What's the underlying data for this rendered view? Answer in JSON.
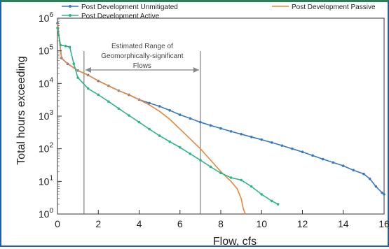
{
  "chart_data": {
    "type": "line",
    "title": "",
    "xlabel": "Flow, cfs",
    "ylabel": "Total hours exceeding",
    "xlim": [
      0,
      16
    ],
    "ylim": [
      1,
      1000000
    ],
    "yscale": "log",
    "x_ticks": [
      0,
      2,
      4,
      6,
      8,
      10,
      12,
      14,
      16
    ],
    "y_ticks": [
      1,
      10,
      100,
      1000,
      10000,
      100000,
      1000000
    ],
    "y_tick_labels": [
      {
        "base": "10",
        "exp": "0"
      },
      {
        "base": "10",
        "exp": "1"
      },
      {
        "base": "10",
        "exp": "2"
      },
      {
        "base": "10",
        "exp": "3"
      },
      {
        "base": "10",
        "exp": "4"
      },
      {
        "base": "10",
        "exp": "5"
      },
      {
        "base": "10",
        "exp": "6"
      }
    ],
    "legend_position": "top",
    "annotation": {
      "text_lines": [
        "Estimated Range of",
        "Geomorphically-significant",
        "Flows"
      ],
      "x_range": [
        1.3,
        7.0
      ]
    },
    "series": [
      {
        "name": "Post Development Unmitigated",
        "color": "#3a78c2",
        "markers": true,
        "x": [
          0,
          0.2,
          0.5,
          1,
          1.5,
          2,
          2.5,
          3,
          3.5,
          4,
          4.5,
          5,
          5.5,
          6,
          6.5,
          7,
          7.5,
          8,
          8.5,
          9,
          9.5,
          10,
          10.5,
          11,
          11.5,
          12,
          12.5,
          13,
          13.5,
          14,
          14.5,
          15,
          15.3,
          15.6,
          15.9,
          16
        ],
        "y": [
          700000,
          60000,
          40000,
          25000,
          18000,
          12000,
          8500,
          6000,
          4500,
          3200,
          2500,
          2000,
          1500,
          1100,
          850,
          650,
          520,
          420,
          340,
          280,
          230,
          190,
          155,
          125,
          100,
          80,
          62,
          48,
          38,
          30,
          22,
          17,
          12,
          7,
          4.5,
          4
        ]
      },
      {
        "name": "Post Development Passive",
        "color": "#e8873a",
        "markers": false,
        "x": [
          0,
          0.2,
          0.5,
          1,
          1.5,
          2,
          2.5,
          3,
          3.5,
          4,
          4.5,
          5,
          5.5,
          6,
          6.5,
          7,
          7.5,
          8,
          8.5,
          8.8,
          9,
          9.1,
          9.2
        ],
        "y": [
          700000,
          60000,
          40000,
          25000,
          18000,
          12000,
          8500,
          6000,
          4500,
          3200,
          2200,
          1400,
          800,
          400,
          200,
          100,
          45,
          20,
          10,
          6,
          3,
          1.5,
          1
        ]
      },
      {
        "name": "Post Development Active",
        "color": "#2fb58a",
        "markers": true,
        "x": [
          0,
          0.15,
          0.4,
          0.6,
          0.8,
          1,
          1.5,
          2,
          2.5,
          3,
          3.5,
          4,
          4.5,
          5,
          5.5,
          6,
          6.5,
          7,
          7.5,
          8,
          8.5,
          9,
          9.5,
          10,
          10.5,
          10.8
        ],
        "y": [
          500000,
          150000,
          140000,
          130000,
          40000,
          15000,
          7000,
          4500,
          2800,
          1700,
          1050,
          650,
          400,
          250,
          165,
          110,
          70,
          45,
          28,
          18,
          13,
          11,
          7,
          4,
          2.5,
          2
        ]
      }
    ]
  }
}
